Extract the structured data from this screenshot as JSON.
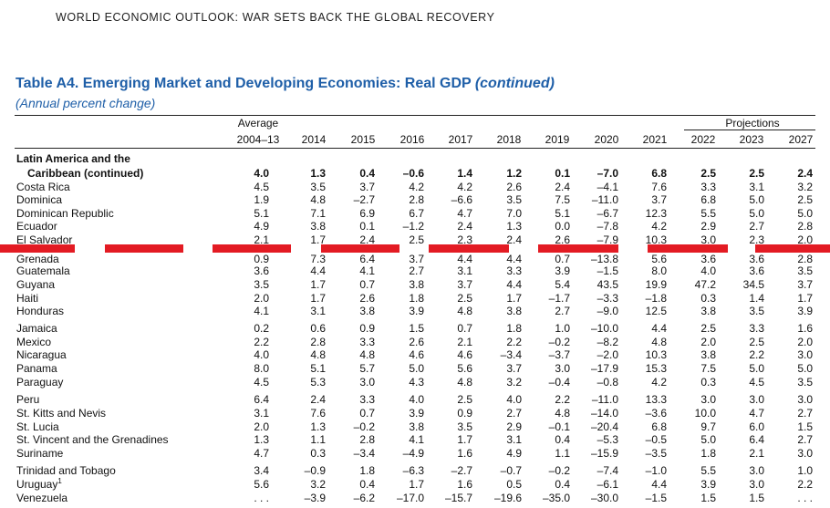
{
  "header": "WORLD ECONOMIC OUTLOOK: WAR SETS BACK THE GLOBAL RECOVERY",
  "title": {
    "main": "Table A4. Emerging Market and Developing Economies: Real GDP ",
    "continued": "(continued)",
    "subtitle": "(Annual percent change)"
  },
  "columns": {
    "average_label": "Average",
    "projections_label": "Projections",
    "years": [
      "2004–13",
      "2014",
      "2015",
      "2016",
      "2017",
      "2018",
      "2019",
      "2020",
      "2021",
      "2022",
      "2023",
      "2027"
    ]
  },
  "group": {
    "line1": "Latin America and the",
    "line2": "Caribbean (continued)",
    "values": [
      "4.0",
      "1.3",
      "0.4",
      "–0.6",
      "1.4",
      "1.2",
      "0.1",
      "–7.0",
      "6.8",
      "2.5",
      "2.5",
      "2.4"
    ]
  },
  "rows": [
    {
      "label": "Costa Rica",
      "values": [
        "4.5",
        "3.5",
        "3.7",
        "4.2",
        "4.2",
        "2.6",
        "2.4",
        "–4.1",
        "7.6",
        "3.3",
        "3.1",
        "3.2"
      ]
    },
    {
      "label": "Dominica",
      "values": [
        "1.9",
        "4.8",
        "–2.7",
        "2.8",
        "–6.6",
        "3.5",
        "7.5",
        "–11.0",
        "3.7",
        "6.8",
        "5.0",
        "2.5"
      ]
    },
    {
      "label": "Dominican Republic",
      "values": [
        "5.1",
        "7.1",
        "6.9",
        "6.7",
        "4.7",
        "7.0",
        "5.1",
        "–6.7",
        "12.3",
        "5.5",
        "5.0",
        "5.0"
      ]
    },
    {
      "label": "Ecuador",
      "values": [
        "4.9",
        "3.8",
        "0.1",
        "–1.2",
        "2.4",
        "1.3",
        "0.0",
        "–7.8",
        "4.2",
        "2.9",
        "2.7",
        "2.8"
      ]
    },
    {
      "label": "El Salvador",
      "values": [
        "2.1",
        "1.7",
        "2.4",
        "2.5",
        "2.3",
        "2.4",
        "2.6",
        "–7.9",
        "10.3",
        "3.0",
        "2.3",
        "2.0"
      ]
    },
    {
      "label": "Grenada",
      "values": [
        "0.9",
        "7.3",
        "6.4",
        "3.7",
        "4.4",
        "4.4",
        "0.7",
        "–13.8",
        "5.6",
        "3.6",
        "3.6",
        "2.8"
      ]
    },
    {
      "label": "Guatemala",
      "values": [
        "3.6",
        "4.4",
        "4.1",
        "2.7",
        "3.1",
        "3.3",
        "3.9",
        "–1.5",
        "8.0",
        "4.0",
        "3.6",
        "3.5"
      ]
    },
    {
      "label": "Guyana",
      "values": [
        "3.5",
        "1.7",
        "0.7",
        "3.8",
        "3.7",
        "4.4",
        "5.4",
        "43.5",
        "19.9",
        "47.2",
        "34.5",
        "3.7"
      ]
    },
    {
      "label": "Haiti",
      "values": [
        "2.0",
        "1.7",
        "2.6",
        "1.8",
        "2.5",
        "1.7",
        "–1.7",
        "–3.3",
        "–1.8",
        "0.3",
        "1.4",
        "1.7"
      ]
    },
    {
      "label": "Honduras",
      "values": [
        "4.1",
        "3.1",
        "3.8",
        "3.9",
        "4.8",
        "3.8",
        "2.7",
        "–9.0",
        "12.5",
        "3.8",
        "3.5",
        "3.9"
      ]
    },
    {
      "label": "Jamaica",
      "values": [
        "0.2",
        "0.6",
        "0.9",
        "1.5",
        "0.7",
        "1.8",
        "1.0",
        "–10.0",
        "4.4",
        "2.5",
        "3.3",
        "1.6"
      ]
    },
    {
      "label": "Mexico",
      "values": [
        "2.2",
        "2.8",
        "3.3",
        "2.6",
        "2.1",
        "2.2",
        "–0.2",
        "–8.2",
        "4.8",
        "2.0",
        "2.5",
        "2.0"
      ]
    },
    {
      "label": "Nicaragua",
      "values": [
        "4.0",
        "4.8",
        "4.8",
        "4.6",
        "4.6",
        "–3.4",
        "–3.7",
        "–2.0",
        "10.3",
        "3.8",
        "2.2",
        "3.0"
      ]
    },
    {
      "label": "Panama",
      "values": [
        "8.0",
        "5.1",
        "5.7",
        "5.0",
        "5.6",
        "3.7",
        "3.0",
        "–17.9",
        "15.3",
        "7.5",
        "5.0",
        "5.0"
      ]
    },
    {
      "label": "Paraguay",
      "values": [
        "4.5",
        "5.3",
        "3.0",
        "4.3",
        "4.8",
        "3.2",
        "–0.4",
        "–0.8",
        "4.2",
        "0.3",
        "4.5",
        "3.5"
      ]
    },
    {
      "label": "Peru",
      "values": [
        "6.4",
        "2.4",
        "3.3",
        "4.0",
        "2.5",
        "4.0",
        "2.2",
        "–11.0",
        "13.3",
        "3.0",
        "3.0",
        "3.0"
      ]
    },
    {
      "label": "St. Kitts and Nevis",
      "values": [
        "3.1",
        "7.6",
        "0.7",
        "3.9",
        "0.9",
        "2.7",
        "4.8",
        "–14.0",
        "–3.6",
        "10.0",
        "4.7",
        "2.7"
      ]
    },
    {
      "label": "St. Lucia",
      "values": [
        "2.0",
        "1.3",
        "–0.2",
        "3.8",
        "3.5",
        "2.9",
        "–0.1",
        "–20.4",
        "6.8",
        "9.7",
        "6.0",
        "1.5"
      ]
    },
    {
      "label": "St. Vincent and the Grenadines",
      "values": [
        "1.3",
        "1.1",
        "2.8",
        "4.1",
        "1.7",
        "3.1",
        "0.4",
        "–5.3",
        "–0.5",
        "5.0",
        "6.4",
        "2.7"
      ]
    },
    {
      "label": "Suriname",
      "values": [
        "4.7",
        "0.3",
        "–3.4",
        "–4.9",
        "1.6",
        "4.9",
        "1.1",
        "–15.9",
        "–3.5",
        "1.8",
        "2.1",
        "3.0"
      ]
    },
    {
      "label": "Trinidad and Tobago",
      "values": [
        "3.4",
        "–0.9",
        "1.8",
        "–6.3",
        "–2.7",
        "–0.7",
        "–0.2",
        "–7.4",
        "–1.0",
        "5.5",
        "3.0",
        "1.0"
      ]
    },
    {
      "label": "Uruguay",
      "sup": "1",
      "values": [
        "5.6",
        "3.2",
        "0.4",
        "1.7",
        "1.6",
        "0.5",
        "0.4",
        "–6.1",
        "4.4",
        "3.9",
        "3.0",
        "2.2"
      ]
    },
    {
      "label": "Venezuela",
      "values": [
        ". . .",
        "–3.9",
        "–6.2",
        "–17.0",
        "–15.7",
        "–19.6",
        "–35.0",
        "–30.0",
        "–1.5",
        "1.5",
        "1.5",
        ". . ."
      ]
    }
  ],
  "colors": {
    "title": "#1f5fa8",
    "dash": "#e31b23"
  }
}
